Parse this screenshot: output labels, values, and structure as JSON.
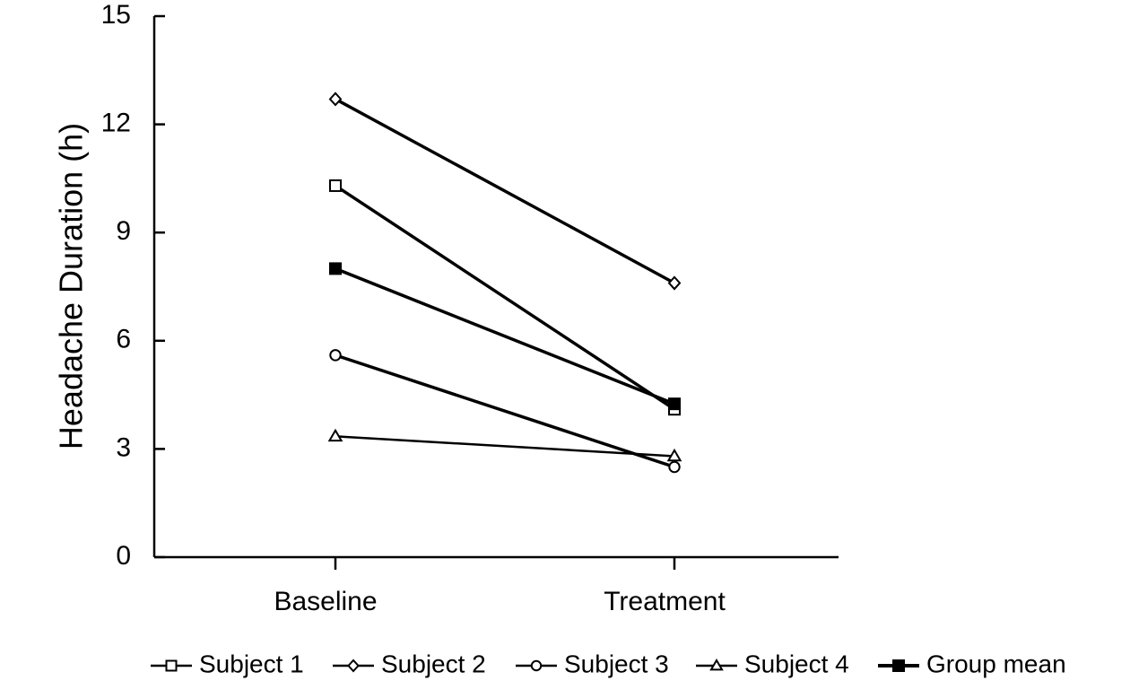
{
  "chart_data": {
    "type": "line",
    "title": "",
    "xlabel": "",
    "ylabel": "Headache Duration (h)",
    "ylim": [
      0,
      15
    ],
    "yticks": [
      0,
      3,
      6,
      9,
      12,
      15
    ],
    "categories": [
      "Baseline",
      "Treatment"
    ],
    "grid": false,
    "legend_position": "bottom",
    "series": [
      {
        "name": "Subject 1",
        "marker": "open-square",
        "values": [
          10.3,
          4.1
        ]
      },
      {
        "name": "Subject 2",
        "marker": "open-diamond",
        "values": [
          12.7,
          7.6
        ]
      },
      {
        "name": "Subject 3",
        "marker": "open-circle",
        "values": [
          5.6,
          2.5
        ]
      },
      {
        "name": "Subject 4",
        "marker": "open-triangle",
        "values": [
          3.35,
          2.8
        ]
      },
      {
        "name": "Group mean",
        "marker": "filled-square",
        "values": [
          8.0,
          4.25
        ]
      }
    ]
  }
}
